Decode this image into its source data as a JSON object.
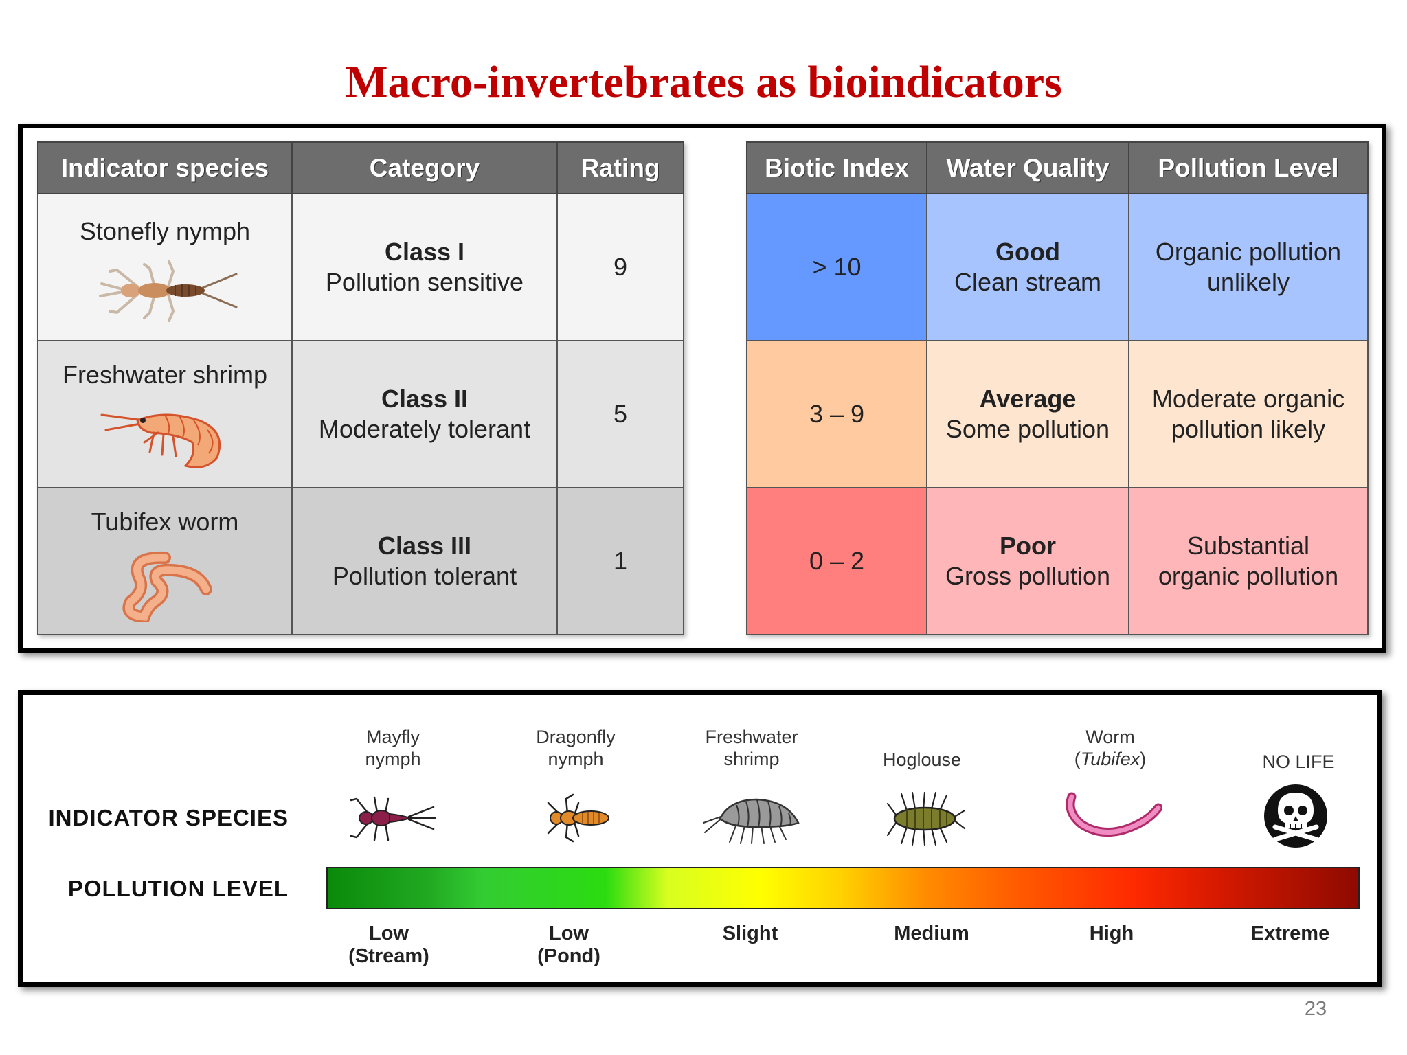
{
  "slide": {
    "title": "Macro-invertebrates as bioindicators",
    "page_number": "23"
  },
  "species_table": {
    "headers": [
      "Indicator species",
      "Category",
      "Rating"
    ],
    "rows": [
      {
        "species": "Stonefly nymph",
        "class": "Class I",
        "description": "Pollution sensitive",
        "rating": "9"
      },
      {
        "species": "Freshwater shrimp",
        "class": "Class II",
        "description": "Moderately tolerant",
        "rating": "5"
      },
      {
        "species": "Tubifex worm",
        "class": "Class III",
        "description": "Pollution tolerant",
        "rating": "1"
      }
    ]
  },
  "index_table": {
    "headers": [
      "Biotic Index",
      "Water Quality",
      "Pollution Level"
    ],
    "rows": [
      {
        "index": "> 10",
        "quality": "Good",
        "quality_note": "Clean stream",
        "level_line1": "Organic pollution",
        "level_line2": "unlikely"
      },
      {
        "index": "3 – 9",
        "quality": "Average",
        "quality_note": "Some pollution",
        "level_line1": "Moderate organic",
        "level_line2": "pollution likely"
      },
      {
        "index": "0 – 2",
        "quality": "Poor",
        "quality_note": "Gross pollution",
        "level_line1": "Substantial",
        "level_line2": "organic pollution"
      }
    ],
    "colors": {
      "good": "#6699ff",
      "average": "#ffcaa0",
      "poor": "#ff7f7f"
    }
  },
  "scale": {
    "row_labels": {
      "species": "INDICATOR SPECIES",
      "pollution": "POLLUTION LEVEL"
    },
    "species": [
      {
        "line1": "Mayfly",
        "line2": "nymph",
        "icon": "mayfly-icon"
      },
      {
        "line1": "Dragonfly",
        "line2": "nymph",
        "icon": "dragonfly-icon"
      },
      {
        "line1": "Freshwater",
        "line2": "shrimp",
        "icon": "shrimp-icon"
      },
      {
        "line1": "Hoglouse",
        "line2": "",
        "icon": "hoglouse-icon"
      },
      {
        "line1": "Worm",
        "line2_pre": "(",
        "line2_italic": "Tubifex",
        "line2_post": ")",
        "icon": "worm-icon"
      },
      {
        "line1": "NO LIFE",
        "line2": "",
        "icon": "skull-icon"
      }
    ],
    "levels": [
      {
        "line1": "Low",
        "line2": "(Stream)"
      },
      {
        "line1": "Low",
        "line2": "(Pond)"
      },
      {
        "line1": "Slight",
        "line2": ""
      },
      {
        "line1": "Medium",
        "line2": ""
      },
      {
        "line1": "High",
        "line2": ""
      },
      {
        "line1": "Extreme",
        "line2": ""
      }
    ]
  }
}
